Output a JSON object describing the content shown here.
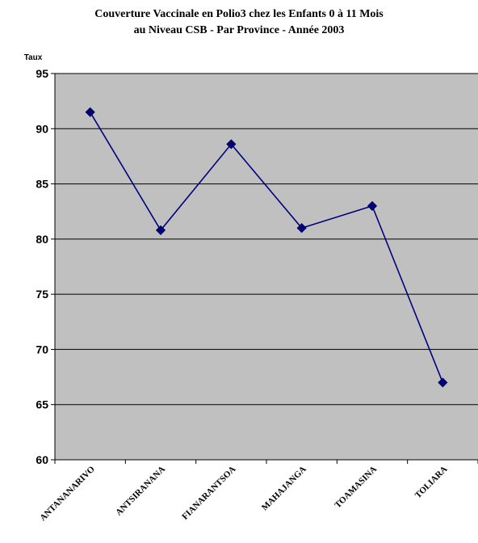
{
  "chart_data": {
    "type": "line",
    "title_line1": "Couverture Vaccinale en Polio3 chez les Enfants 0 à 11  Mois",
    "title_line2": "au Niveau CSB - Par Province - Année 2003",
    "ylabel": "Taux",
    "xlabel": "",
    "categories": [
      "ANTANANARIVO",
      "ANTSIRANANA",
      "FIANARANTSOA",
      "MAHAJANGA",
      "TOAMASINA",
      "TOLIARA"
    ],
    "series": [
      {
        "values": [
          91.5,
          80.8,
          88.6,
          81.0,
          83.0,
          67.0
        ]
      }
    ],
    "ylim": [
      60,
      95
    ],
    "yticks": [
      "60",
      "65",
      "70",
      "75",
      "80",
      "85",
      "90",
      "95"
    ],
    "grid": true,
    "colors": {
      "plot_bg": "#c0c0c0",
      "line": "#000080",
      "marker": "#000080"
    }
  }
}
